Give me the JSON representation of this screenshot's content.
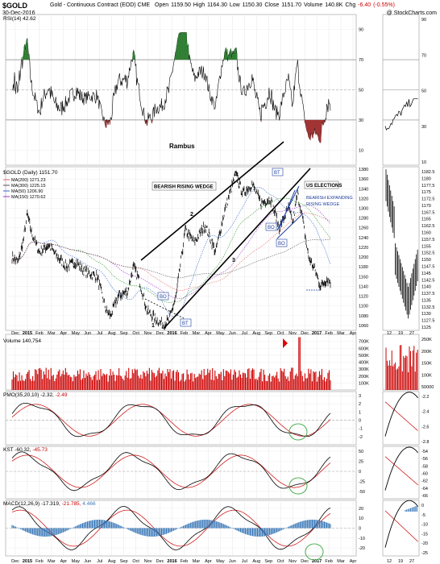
{
  "header": {
    "symbol": "$GOLD",
    "description": "Gold - Continuous Contract (EOD)  CME",
    "ohlc": "Open 1159.50  High 1164.30  Low 1150.30  Close 1151.70  Volume 140.8K  Chg",
    "change": "-6.40 (-0.55%)",
    "date": "30-Dec-2016",
    "credit": "@ StockCharts.com"
  },
  "colors": {
    "price": "#000000",
    "ma200": "#e06666",
    "ma300": "#555555",
    "ma50": "#3366cc",
    "ma150": "#9933cc",
    "ma100": "#339933",
    "volume": "#cc0000",
    "signal": "#cc0000",
    "rsi_fill_hi": "#2e7d32",
    "rsi_fill_lo": "#a03030",
    "histogram": "#3a78b8",
    "annotation_box": "#1f3f9f"
  },
  "panels": {
    "rsi": {
      "legend": "RSI(14) 42.62",
      "author": "Rambus"
    },
    "price": {
      "legend": "$GOLD (Daily) 1151.70"
    },
    "volume": {
      "legend": "Volume 140,754"
    },
    "pmo": {
      "legend_main": "PMO(35,20,10) -2.32,",
      "legend_signal": "-2.49"
    },
    "kst": {
      "legend_main": "KST -60.32,",
      "legend_signal": "-45.73"
    },
    "macd": {
      "legend_main": "MACD(12,26,9) -17.319,",
      "legend_signal": "-21.785,",
      "legend_hist": "4.466"
    }
  },
  "ma_legend": [
    {
      "label": "MA(200) 1271.23",
      "color": "#e06666"
    },
    {
      "label": "MA(300) 1225.15",
      "color": "#555555"
    },
    {
      "label": "MA(50) 1206.90",
      "color": "#3366cc"
    },
    {
      "label": "MA(150) 1270.62",
      "color": "#9933cc"
    }
  ],
  "annotations": {
    "wedge": "BEARISH RISING WEDGE",
    "elections": "US ELECTIONS",
    "expanding": [
      "BEARISH EXPANDING",
      "RISING WEDGE"
    ],
    "bo": "BO",
    "bt": "BT",
    "points": [
      "1",
      "2",
      "3",
      "4"
    ]
  },
  "x_axis": [
    "Dec",
    "2015",
    "Feb",
    "Mar",
    "Apr",
    "May",
    "Jun",
    "Jul",
    "Aug",
    "Sep",
    "Oct",
    "Nov",
    "Dec",
    "2016",
    "Feb",
    "Mar",
    "Apr",
    "May",
    "Jun",
    "Jul",
    "Aug",
    "Sep",
    "Oct",
    "Nov",
    "Dec",
    "2017",
    "Feb",
    "Mar",
    "Apr"
  ],
  "x_axis_right": [
    "12",
    "19",
    "27"
  ],
  "chart_data": [
    {
      "type": "line",
      "title": "RSI(14) 42.62",
      "ylim": [
        0,
        100
      ],
      "yticks": [
        10,
        30,
        50,
        70,
        90
      ],
      "reference_lines": [
        30,
        50,
        70
      ],
      "series": [
        {
          "name": "RSI(14)",
          "last": 42.62
        }
      ]
    },
    {
      "type": "line",
      "title": "$GOLD (Daily) 1151.70",
      "ylim": [
        1050,
        1385
      ],
      "yticks": [
        1060,
        1080,
        1100,
        1120,
        1140,
        1160,
        1180,
        1200,
        1220,
        1240,
        1260,
        1280,
        1300,
        1320,
        1340,
        1360,
        1380
      ],
      "yticks_right": [
        1125.0,
        1127.5,
        1130.0,
        1132.5,
        1135.0,
        1137.5,
        1140.0,
        1142.5,
        1145.0,
        1147.5,
        1150.0,
        1152.5,
        1155.0,
        1157.5,
        1160.0,
        1162.5,
        1165.0,
        1167.5,
        1170.0,
        1172.5,
        1175.0,
        1177.5,
        1180.0,
        1182.5
      ],
      "series": [
        {
          "name": "$GOLD (Daily)",
          "last": 1151.7
        },
        {
          "name": "MA(200)",
          "last": 1271.23
        },
        {
          "name": "MA(300)",
          "last": 1225.15
        },
        {
          "name": "MA(50)",
          "last": 1206.9
        },
        {
          "name": "MA(150)",
          "last": 1270.62
        }
      ]
    },
    {
      "type": "bar",
      "title": "Volume 140,754",
      "ylim": [
        0,
        800000
      ],
      "yticks": [
        100000,
        200000,
        300000,
        400000,
        500000,
        600000,
        700000
      ],
      "ytick_labels": [
        "100K",
        "200K",
        "300K",
        "400K",
        "500K",
        "600K",
        "700K"
      ],
      "yticks_right": [
        "250K",
        "200K",
        "150K",
        "100K",
        "50000"
      ],
      "last": 140754
    },
    {
      "type": "line",
      "title": "PMO(35,20,10)",
      "ylim": [
        -3,
        3
      ],
      "yticks": [
        -2,
        -1,
        0,
        1,
        2,
        3
      ],
      "yticks_right": [
        -2.2,
        -2.4,
        -2.6,
        -2.8
      ],
      "series": [
        {
          "name": "PMO",
          "last": -2.32
        },
        {
          "name": "Signal",
          "last": -2.49
        }
      ]
    },
    {
      "type": "line",
      "title": "KST",
      "ylim": [
        -62,
        62
      ],
      "yticks": [
        -50,
        -25,
        0,
        25,
        50
      ],
      "yticks_right": [
        -54,
        -56,
        -58,
        -60,
        -62,
        -64,
        -66
      ],
      "series": [
        {
          "name": "KST",
          "last": -60.32
        },
        {
          "name": "Signal",
          "last": -45.73
        }
      ]
    },
    {
      "type": "line",
      "title": "MACD(12,26,9)",
      "ylim": [
        -28,
        28
      ],
      "yticks": [
        -20,
        -10,
        0,
        10,
        20
      ],
      "yticks_right": [
        0,
        -5,
        -10,
        -15,
        -20,
        -25
      ],
      "series": [
        {
          "name": "MACD",
          "last": -17.319
        },
        {
          "name": "Signal",
          "last": -21.785
        },
        {
          "name": "Histogram",
          "last": 4.466
        }
      ]
    }
  ]
}
